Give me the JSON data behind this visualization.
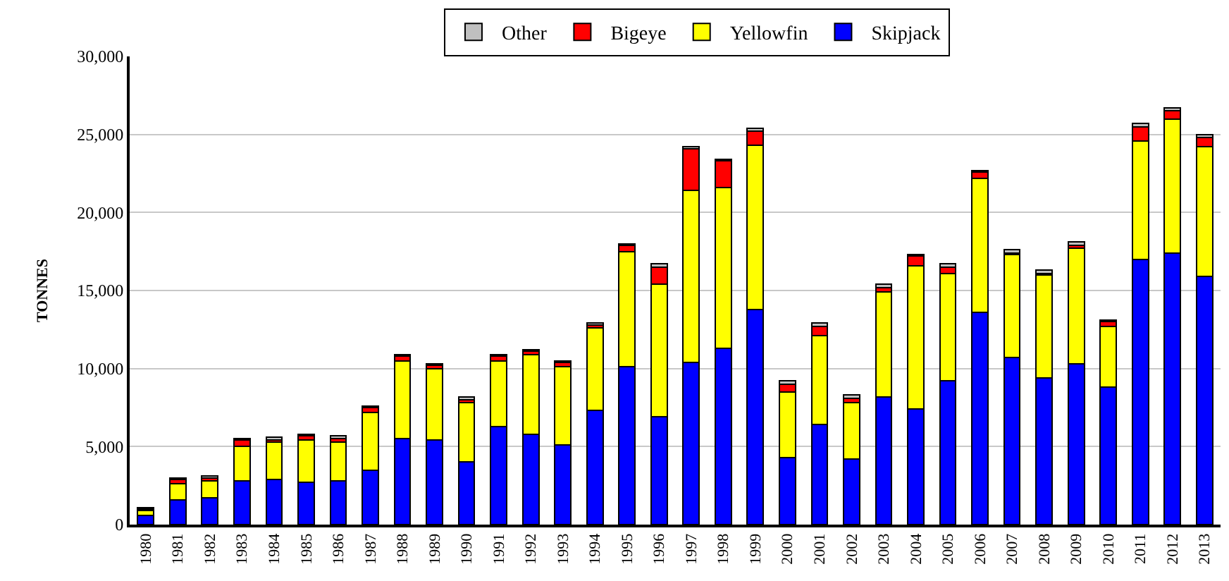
{
  "chart_data": {
    "type": "bar",
    "stacked": true,
    "ylabel": "TONNES",
    "categories": [
      "1980",
      "1981",
      "1982",
      "1983",
      "1984",
      "1985",
      "1986",
      "1987",
      "1988",
      "1989",
      "1990",
      "1991",
      "1992",
      "1993",
      "1994",
      "1995",
      "1996",
      "1997",
      "1998",
      "1999",
      "2000",
      "2001",
      "2002",
      "2003",
      "2004",
      "2005",
      "2006",
      "2007",
      "2008",
      "2009",
      "2010",
      "2011",
      "2012",
      "2013"
    ],
    "series": [
      {
        "name": "Skipjack",
        "color": "#0000ff",
        "values": [
          600,
          1600,
          1700,
          2800,
          2900,
          2700,
          2800,
          3500,
          5500,
          5400,
          4000,
          6300,
          5800,
          5100,
          7300,
          10100,
          6900,
          10400,
          11300,
          13800,
          4300,
          6400,
          4200,
          8200,
          7400,
          9200,
          13600,
          10700,
          9400,
          10300,
          8800,
          17000,
          17400,
          15900
        ]
      },
      {
        "name": "Yellowfin",
        "color": "#ffff00",
        "values": [
          300,
          1000,
          1100,
          2200,
          2400,
          2700,
          2500,
          3700,
          5000,
          4600,
          3800,
          4200,
          5100,
          5000,
          5300,
          7400,
          8500,
          11000,
          10300,
          10500,
          4200,
          5700,
          3600,
          6700,
          9200,
          6900,
          8600,
          6600,
          6600,
          7400,
          3900,
          7600,
          8600,
          8300
        ]
      },
      {
        "name": "Bigeye",
        "color": "#ff0000",
        "values": [
          100,
          300,
          200,
          400,
          100,
          300,
          200,
          300,
          300,
          200,
          200,
          300,
          200,
          300,
          200,
          400,
          1100,
          2700,
          1700,
          900,
          500,
          600,
          300,
          300,
          600,
          400,
          400,
          100,
          100,
          200,
          300,
          900,
          500,
          600
        ]
      },
      {
        "name": "Other",
        "color": "#c0c0c0",
        "values": [
          100,
          100,
          100,
          100,
          200,
          100,
          200,
          100,
          100,
          100,
          200,
          100,
          100,
          100,
          100,
          100,
          200,
          100,
          100,
          200,
          200,
          200,
          200,
          200,
          100,
          200,
          100,
          200,
          200,
          200,
          100,
          200,
          200,
          200
        ]
      }
    ],
    "ylim": [
      0,
      30000
    ],
    "yticks": [
      {
        "value": 0,
        "label": "0"
      },
      {
        "value": 5000,
        "label": "5,000"
      },
      {
        "value": 10000,
        "label": "10,000"
      },
      {
        "value": 15000,
        "label": "15,000"
      },
      {
        "value": 20000,
        "label": "20,000"
      },
      {
        "value": 25000,
        "label": "25,000"
      },
      {
        "value": 30000,
        "label": "30,000"
      }
    ],
    "grid": "y",
    "legend": "top"
  }
}
